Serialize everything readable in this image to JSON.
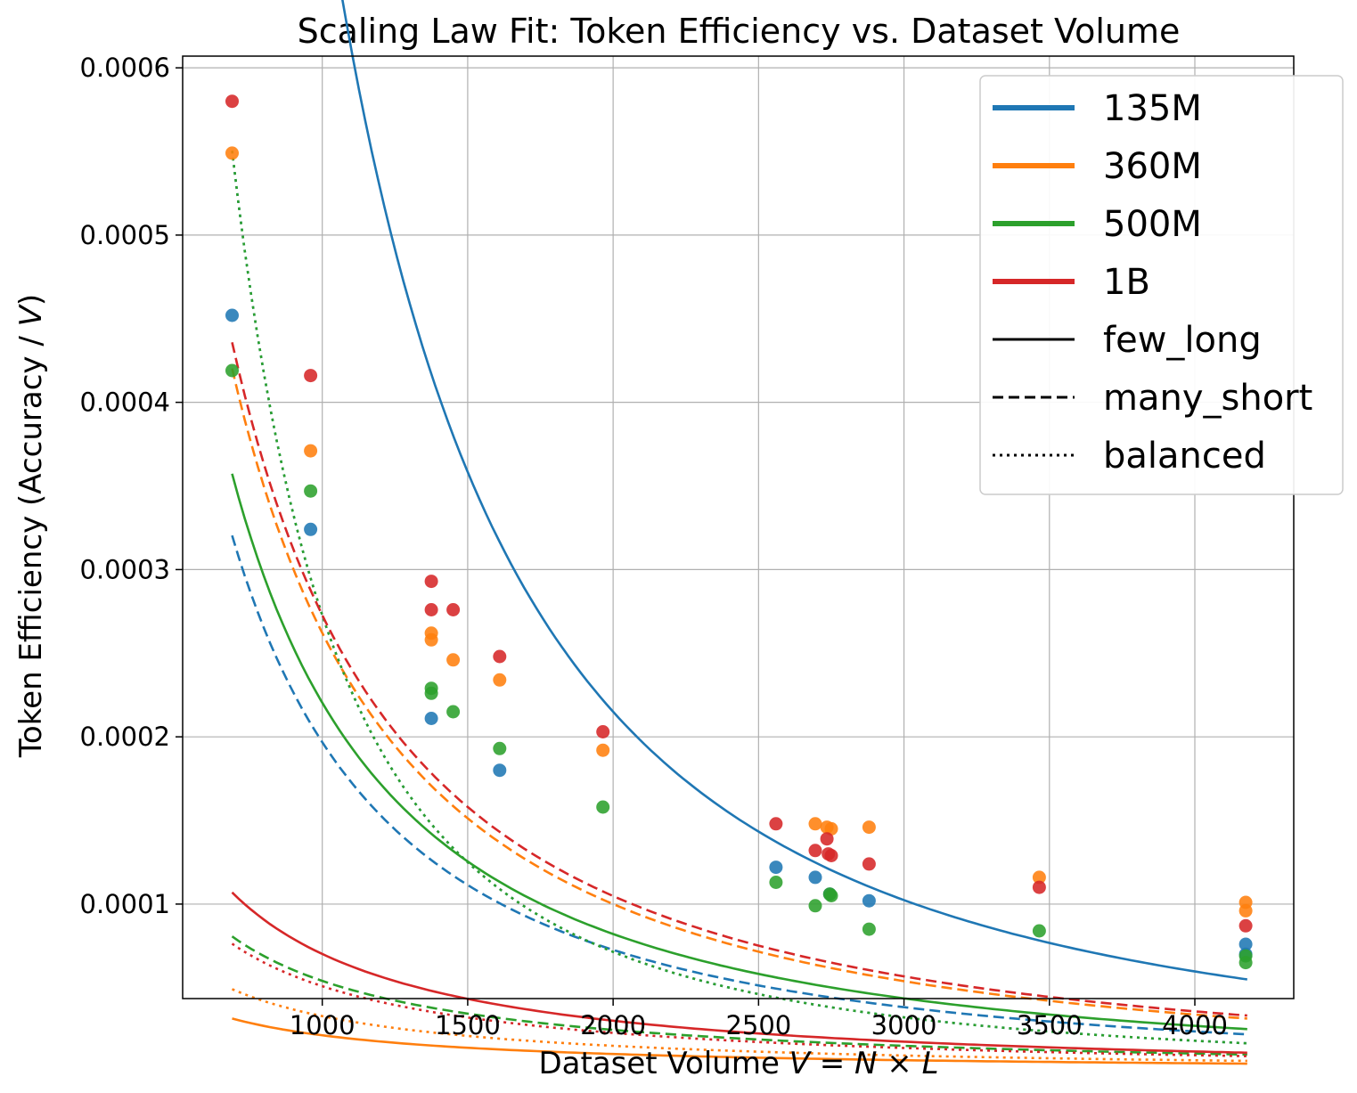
{
  "chart_data": {
    "type": "scatter",
    "title": "Scaling Law Fit: Token Efficiency vs. Dataset Volume",
    "xlabel_prefix": "Dataset Volume ",
    "xlabel_math": "V = N × L",
    "ylabel_prefix": "Token Efficiency (Accuracy / ",
    "ylabel_math": "V",
    "ylabel_suffix": ")",
    "xlim": [
      520,
      4340
    ],
    "ylim": [
      4.35e-05,
      0.000607
    ],
    "xticks": [
      1000,
      1500,
      2000,
      2500,
      3000,
      3500,
      4000
    ],
    "xtick_labels": [
      "1000",
      "1500",
      "2000",
      "2500",
      "3000",
      "3500",
      "4000"
    ],
    "yticks": [
      0.0001,
      0.0002,
      0.0003,
      0.0004,
      0.0005,
      0.0006
    ],
    "ytick_labels": [
      "0.0001",
      "0.0002",
      "0.0003",
      "0.0004",
      "0.0005",
      "0.0006"
    ],
    "grid": true,
    "legend_position": "top-right",
    "fit_x_range": [
      690,
      4180
    ],
    "legend": [
      {
        "label": "135M",
        "kind": "color",
        "color": "#1f77b4"
      },
      {
        "label": "360M",
        "kind": "color",
        "color": "#ff7f0e"
      },
      {
        "label": "500M",
        "kind": "color",
        "color": "#2ca02c"
      },
      {
        "label": "1B",
        "kind": "color",
        "color": "#d62728"
      },
      {
        "label": "few_long",
        "kind": "style",
        "style": "solid"
      },
      {
        "label": "many_short",
        "kind": "style",
        "style": "dashed"
      },
      {
        "label": "balanced",
        "kind": "style",
        "style": "dotted"
      }
    ],
    "series": [
      {
        "model": "135M",
        "color": "#1f77b4",
        "fits": {
          "few_long": {
            "a": 2.15,
            "b": 0.002
          },
          "many_short": {
            "a": 0.305,
            "b": 0.00055
          },
          "balanced": {
            "a": 3.0,
            "b": 0.01
          }
        },
        "points": [
          [
            690,
            0.000452
          ],
          [
            960,
            0.000324
          ],
          [
            1375,
            0.000211
          ],
          [
            1610,
            0.00018
          ],
          [
            2560,
            0.000122
          ],
          [
            2695,
            0.000116
          ],
          [
            2745,
            0.000106
          ],
          [
            2880,
            0.000102
          ],
          [
            4175,
            7.6e-05
          ],
          [
            4175,
            7e-05
          ]
        ]
      },
      {
        "model": "360M",
        "color": "#ff7f0e",
        "fits": {
          "few_long": {
            "a": 0.0224,
            "b": 4e-05
          },
          "many_short": {
            "a": 0.38,
            "b": 0.00045
          },
          "balanced": {
            "a": 0.036,
            "b": 9e-05
          }
        },
        "points": [
          [
            690,
            0.000549
          ],
          [
            960,
            0.000371
          ],
          [
            1375,
            0.000262
          ],
          [
            1375,
            0.000258
          ],
          [
            1450,
            0.000246
          ],
          [
            1610,
            0.000234
          ],
          [
            1965,
            0.000192
          ],
          [
            2695,
            0.000148
          ],
          [
            2735,
            0.000146
          ],
          [
            2750,
            0.000145
          ],
          [
            2880,
            0.000146
          ],
          [
            3465,
            0.000116
          ],
          [
            4175,
            0.000101
          ],
          [
            4175,
            9.6e-05
          ]
        ]
      },
      {
        "model": "500M",
        "color": "#2ca02c",
        "fits": {
          "few_long": {
            "a": 0.335,
            "b": 0.00052
          },
          "many_short": {
            "a": 0.0595,
            "b": 0.0001
          },
          "balanced": {
            "a": 3.0,
            "b": 0.01
          }
        },
        "points": [
          [
            690,
            0.000419
          ],
          [
            960,
            0.000347
          ],
          [
            1375,
            0.000229
          ],
          [
            1375,
            0.000226
          ],
          [
            1450,
            0.000215
          ],
          [
            1610,
            0.000193
          ],
          [
            1965,
            0.000158
          ],
          [
            2560,
            0.000113
          ],
          [
            2695,
            9.9e-05
          ],
          [
            2745,
            0.000106
          ],
          [
            2750,
            0.000105
          ],
          [
            2880,
            8.5e-05
          ],
          [
            3465,
            8.4e-05
          ],
          [
            4175,
            6.9e-05
          ],
          [
            4175,
            6.5e-05
          ]
        ]
      },
      {
        "model": "1B",
        "color": "#d62728",
        "fits": {
          "few_long": {
            "a": 0.0835,
            "b": 0.00019
          },
          "many_short": {
            "a": 0.39,
            "b": 0.00043
          },
          "balanced": {
            "a": 0.057,
            "b": 0.00012
          }
        },
        "points": [
          [
            690,
            0.00058
          ],
          [
            960,
            0.000416
          ],
          [
            1375,
            0.000293
          ],
          [
            1375,
            0.000276
          ],
          [
            1450,
            0.000276
          ],
          [
            1610,
            0.000248
          ],
          [
            1965,
            0.000203
          ],
          [
            2560,
            0.000148
          ],
          [
            2695,
            0.000132
          ],
          [
            2735,
            0.000139
          ],
          [
            2740,
            0.00013
          ],
          [
            2750,
            0.000129
          ],
          [
            2880,
            0.000124
          ],
          [
            3465,
            0.00011
          ],
          [
            4175,
            8.7e-05
          ]
        ]
      }
    ]
  }
}
